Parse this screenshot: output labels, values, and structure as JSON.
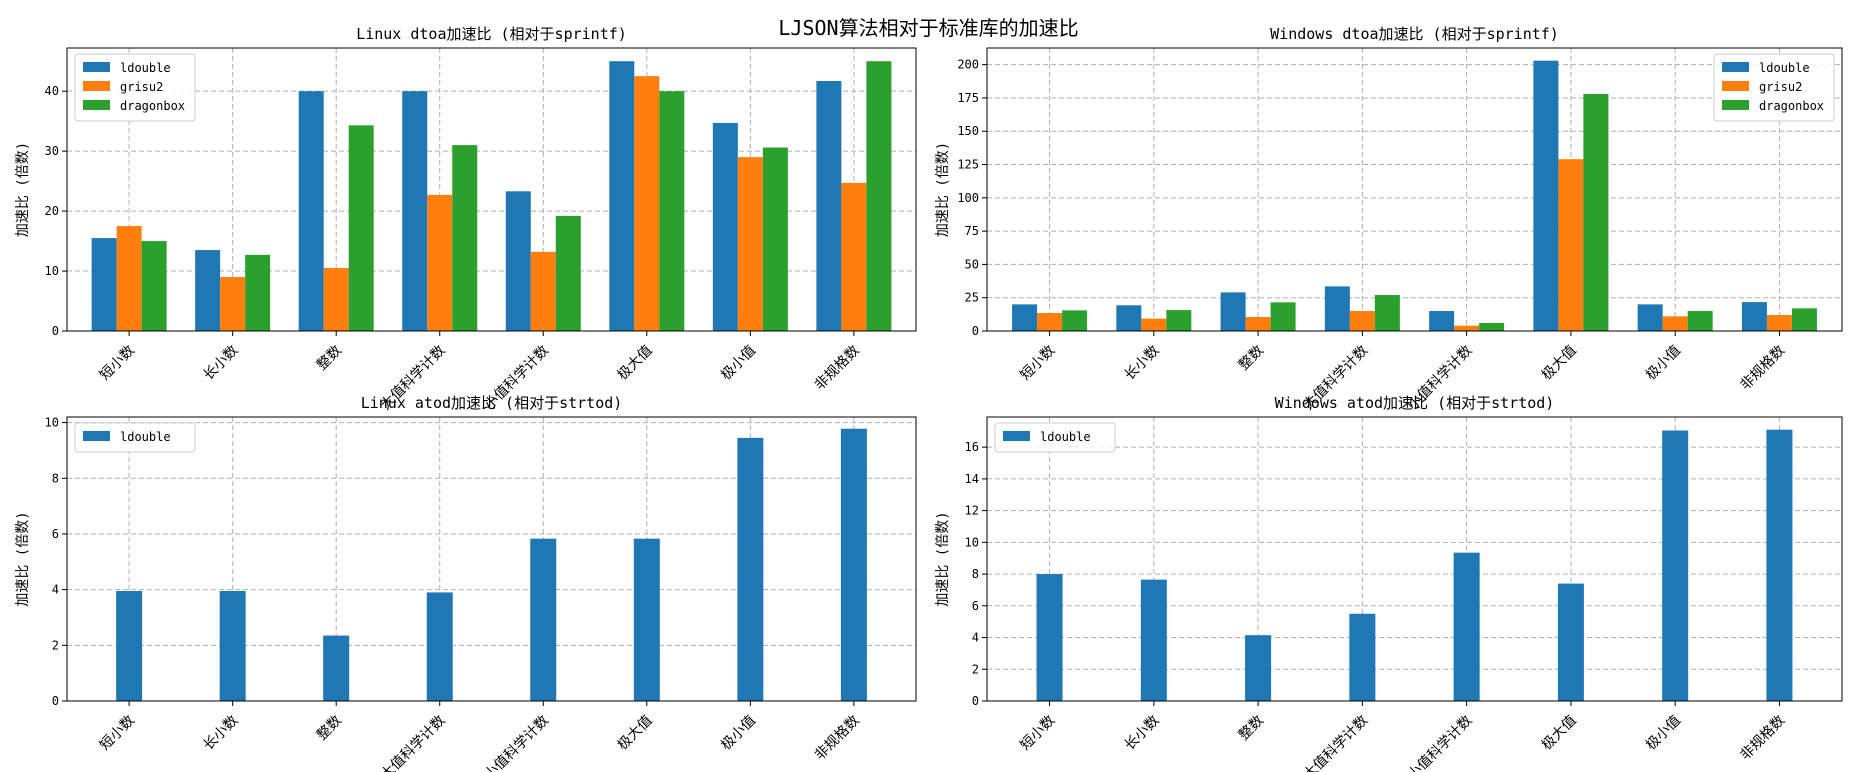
{
  "figure": {
    "title": "LJSON算法相对于标准库的加速比"
  },
  "colors": {
    "ldouble": "#1f77b4",
    "grisu2": "#ff7f0e",
    "dragonbox": "#2ca02c",
    "grid": "#b0b0b0"
  },
  "chart_data": [
    {
      "type": "bar",
      "title": "Linux dtoa加速比 (相对于sprintf)",
      "xlabel": "",
      "ylabel": "加速比 (倍数)",
      "categories": [
        "短小数",
        "长小数",
        "整数",
        "大值科学计数",
        "小值科学计数",
        "极大值",
        "极小值",
        "非规格数"
      ],
      "series": [
        {
          "name": "ldouble",
          "values": [
            15.5,
            13.5,
            40.0,
            40.0,
            23.3,
            45.0,
            34.7,
            41.7
          ]
        },
        {
          "name": "grisu2",
          "values": [
            17.5,
            9.0,
            10.5,
            22.7,
            13.2,
            42.5,
            29.0,
            24.7
          ]
        },
        {
          "name": "dragonbox",
          "values": [
            15.0,
            12.7,
            34.3,
            31.0,
            19.2,
            40.0,
            30.6,
            45.0
          ]
        }
      ],
      "ylim": [
        0,
        47.2
      ],
      "yticks": [
        0,
        10,
        20,
        30,
        40
      ],
      "grid": true,
      "legend": "upper-left"
    },
    {
      "type": "bar",
      "title": "Windows dtoa加速比 (相对于sprintf)",
      "xlabel": "",
      "ylabel": "加速比 (倍数)",
      "categories": [
        "短小数",
        "长小数",
        "整数",
        "大值科学计数",
        "小值科学计数",
        "极大值",
        "极小值",
        "非规格数"
      ],
      "series": [
        {
          "name": "ldouble",
          "values": [
            20.0,
            19.3,
            29.0,
            33.5,
            15.0,
            203.0,
            20.0,
            21.7
          ]
        },
        {
          "name": "grisu2",
          "values": [
            13.5,
            9.3,
            10.5,
            15.0,
            4.0,
            129.0,
            11.0,
            12.0
          ]
        },
        {
          "name": "dragonbox",
          "values": [
            15.5,
            15.7,
            21.5,
            27.0,
            6.0,
            178.0,
            15.0,
            17.0
          ]
        }
      ],
      "ylim": [
        0,
        212.5
      ],
      "yticks": [
        0,
        25,
        50,
        75,
        100,
        125,
        150,
        175,
        200
      ],
      "grid": true,
      "legend": "upper-right"
    },
    {
      "type": "bar",
      "title": "Linux atod加速比 (相对于strtod)",
      "xlabel": "",
      "ylabel": "加速比 (倍数)",
      "categories": [
        "短小数",
        "长小数",
        "整数",
        "大值科学计数",
        "小值科学计数",
        "极大值",
        "极小值",
        "非规格数"
      ],
      "series": [
        {
          "name": "ldouble",
          "values": [
            3.95,
            3.95,
            2.35,
            3.9,
            5.83,
            5.83,
            9.45,
            9.78
          ]
        }
      ],
      "ylim": [
        0,
        10.2
      ],
      "yticks": [
        0,
        2,
        4,
        6,
        8,
        10
      ],
      "grid": true,
      "legend": "upper-left"
    },
    {
      "type": "bar",
      "title": "Windows atod加速比 (相对于strtod)",
      "xlabel": "",
      "ylabel": "加速比 (倍数)",
      "categories": [
        "短小数",
        "长小数",
        "整数",
        "大值科学计数",
        "小值科学计数",
        "极大值",
        "极小值",
        "非规格数"
      ],
      "series": [
        {
          "name": "ldouble",
          "values": [
            8.0,
            7.65,
            4.15,
            5.5,
            9.35,
            7.4,
            17.05,
            17.1
          ]
        }
      ],
      "ylim": [
        0,
        17.9
      ],
      "yticks": [
        0,
        2,
        4,
        6,
        8,
        10,
        12,
        14,
        16
      ],
      "grid": true,
      "legend": "upper-left"
    }
  ]
}
